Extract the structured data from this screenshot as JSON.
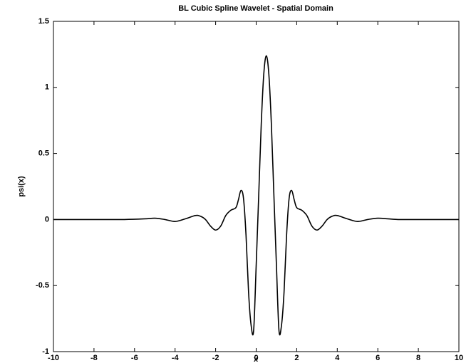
{
  "chart_data": {
    "type": "line",
    "title": "BL Cubic Spline Wavelet - Spatial Domain",
    "xlabel": "x",
    "ylabel": "psi(x)",
    "x": [
      -10,
      -9.5,
      -8.5,
      -7.5,
      -6.5,
      -5.5,
      -5,
      -4.5,
      -4,
      -3.5,
      -3,
      -2.75,
      -2.5,
      -2.25,
      -2,
      -1.75,
      -1.5,
      -1.25,
      -1,
      -0.875,
      -0.75,
      -0.625,
      -0.5,
      -0.375,
      -0.25,
      -0.125,
      0,
      0.125,
      0.25,
      0.375,
      0.5,
      0.625,
      0.75,
      0.875,
      1,
      1.125,
      1.25,
      1.375,
      1.5,
      1.625,
      1.75,
      1.875,
      2,
      2.25,
      2.5,
      2.75,
      3,
      3.25,
      3.5,
      3.75,
      4,
      4.5,
      5,
      5.5,
      6,
      6.5,
      7,
      7.5,
      8.5,
      9.5,
      10
    ],
    "series": [
      {
        "color": "#000000",
        "values": [
          0,
          0,
          0,
          0,
          0,
          0.005,
          0.01,
          0,
          -0.015,
          0.005,
          0.03,
          0.025,
          0,
          -0.05,
          -0.08,
          -0.05,
          0.03,
          0.07,
          0.09,
          0.15,
          0.22,
          0.16,
          -0.12,
          -0.55,
          -0.8,
          -0.84,
          -0.35,
          0.18,
          0.72,
          1.1,
          1.24,
          1.1,
          0.72,
          0.18,
          -0.35,
          -0.84,
          -0.8,
          -0.55,
          -0.12,
          0.16,
          0.22,
          0.15,
          0.09,
          0.07,
          0.03,
          -0.05,
          -0.08,
          -0.05,
          0,
          0.025,
          0.03,
          0.005,
          -0.015,
          0,
          0.01,
          0.005,
          0,
          0,
          0,
          0,
          0
        ]
      }
    ],
    "xlim": [
      -10,
      10
    ],
    "xticks": [
      -10,
      -8,
      -6,
      -4,
      -2,
      0,
      2,
      4,
      6,
      8,
      10
    ],
    "ylim": [
      -1,
      1.5
    ],
    "yticks": [
      -1,
      -0.5,
      0,
      0.5,
      1,
      1.5
    ],
    "grid": false
  }
}
